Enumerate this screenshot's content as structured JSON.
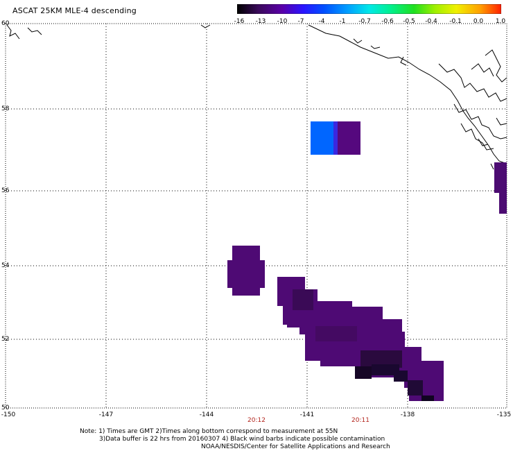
{
  "title": "ASCAT 25KM MLE-4 descending",
  "colorbar": {
    "labels": [
      "-16",
      "-13",
      "-10",
      "-7",
      "-4",
      "-1",
      "-0.7",
      "-0.6",
      "-0.5",
      "-0.4",
      "-0.1",
      "0.0",
      "1.0"
    ],
    "colors": [
      "#000000",
      "#3a0a5a",
      "#5a00a8",
      "#2a14ff",
      "#0050ff",
      "#00a0ff",
      "#00e8e8",
      "#00f090",
      "#20e020",
      "#a0f000",
      "#f0f000",
      "#ffa000",
      "#ff2000"
    ]
  },
  "axes": {
    "lat_labels": [
      "60",
      "58",
      "56",
      "54",
      "52",
      "50"
    ],
    "lon_labels": [
      "-150",
      "-147",
      "-144",
      "-141",
      "-138",
      "-135"
    ]
  },
  "times": [
    "20:12",
    "20:11"
  ],
  "notes": {
    "line1": "Note: 1) Times are GMT 2)Times along bottom correspond to measurement at 55N",
    "line2": "3)Data buffer is 22 hrs from 20160307 4) Black wind barbs indicate possible contamination",
    "line3": "NOAA/NESDIS/Center for Satellite Applications and Research"
  }
}
